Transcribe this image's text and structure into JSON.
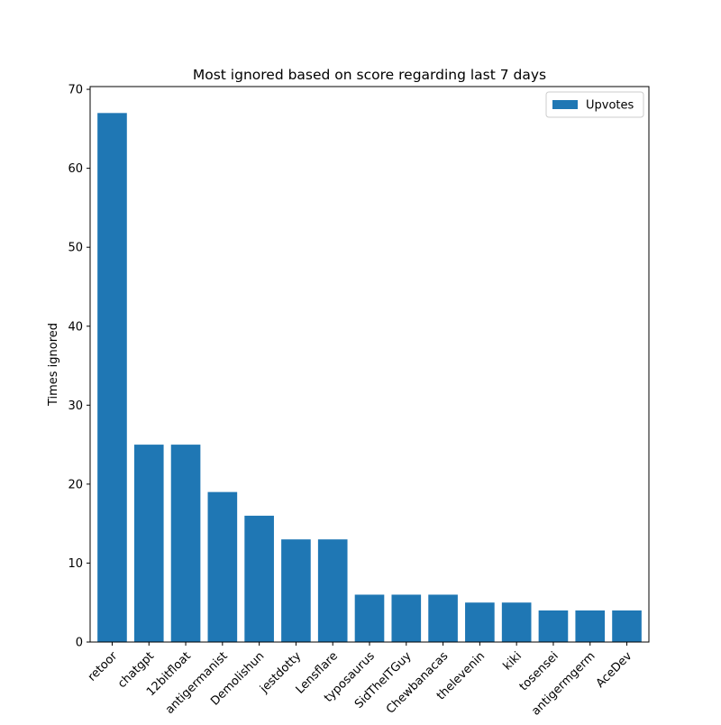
{
  "chart_data": {
    "type": "bar",
    "title": "Most ignored based on score regarding last 7 days",
    "xlabel": "",
    "ylabel": "Times ignored",
    "categories": [
      "retoor",
      "chatgpt",
      "12bitfloat",
      "antigermanist",
      "Demolishun",
      "jestdotty",
      "Lensflare",
      "typosaurus",
      "SidTheITGuy",
      "Chewbanacas",
      "thelevenin",
      "kiki",
      "tosensei",
      "antigermgerm",
      "AceDev"
    ],
    "series": [
      {
        "name": "Upvotes",
        "values": [
          67,
          25,
          25,
          19,
          16,
          13,
          13,
          6,
          6,
          6,
          5,
          5,
          4,
          4,
          4
        ],
        "color": "#1f77b4"
      }
    ],
    "yticks": [
      0,
      10,
      20,
      30,
      40,
      50,
      60,
      70
    ],
    "ylim": [
      0,
      70.35
    ],
    "grid": false,
    "legend_position": "upper right"
  }
}
